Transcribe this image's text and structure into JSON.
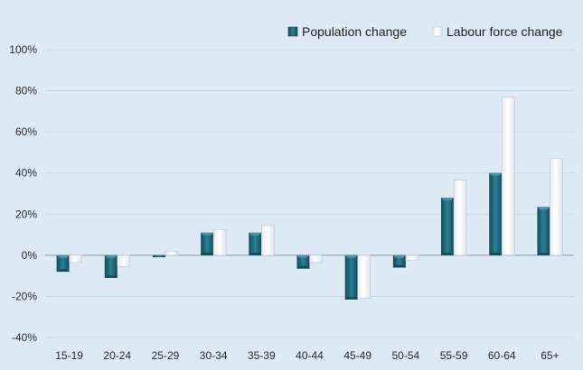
{
  "chart_data": {
    "type": "bar",
    "title": "",
    "xlabel": "",
    "ylabel": "",
    "categories": [
      "15-19",
      "20-24",
      "25-29",
      "30-34",
      "35-39",
      "40-44",
      "45-49",
      "50-54",
      "55-59",
      "60-64",
      "65+"
    ],
    "series": [
      {
        "name": "Population change",
        "values": [
          -8,
          -11,
          -1,
          11,
          11,
          -6.5,
          -21.5,
          -6,
          28,
          40,
          23.5
        ]
      },
      {
        "name": "Labour force change",
        "values": [
          -3.5,
          -5.5,
          2,
          12.5,
          14.5,
          -3.5,
          -21,
          -2.5,
          36.5,
          77,
          47
        ]
      }
    ],
    "ylim": [
      -40,
      100
    ],
    "yticks": [
      -40,
      -20,
      0,
      20,
      40,
      60,
      80,
      100
    ],
    "ytick_labels": [
      "-40%",
      "-20%",
      "0%",
      "20%",
      "40%",
      "60%",
      "80%",
      "100%"
    ],
    "grid": true,
    "legend_position": "top-right",
    "colors": {
      "background": "#ddeaf6",
      "population": "#1f6e80",
      "population_dark": "#134a57",
      "population_light": "#4d9aab",
      "labour": "#ffffff",
      "labour_edge": "#b9c6d2",
      "grid": "#c6d4e1",
      "zero_line": "#8c98a4"
    }
  }
}
